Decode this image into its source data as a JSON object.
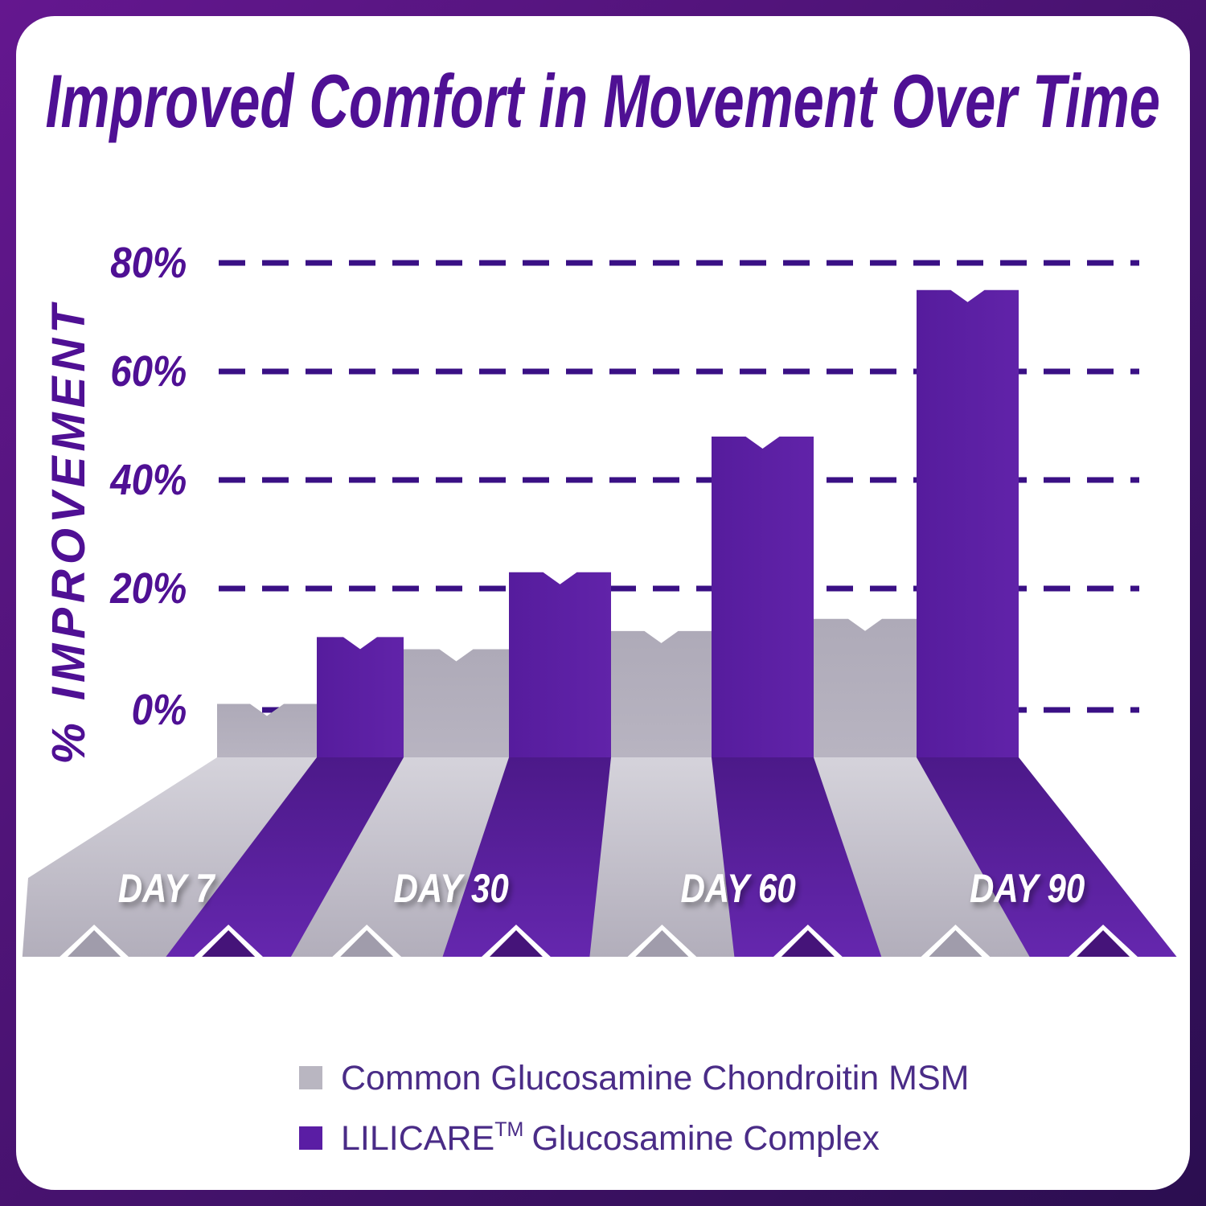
{
  "title": "Improved Comfort in Movement Over Time",
  "y_axis": {
    "label": "% IMPROVEMENT",
    "ticks": [
      "80%",
      "60%",
      "40%",
      "20%",
      "0%"
    ]
  },
  "chart_data": {
    "type": "bar",
    "categories": [
      "DAY 7",
      "DAY 30",
      "DAY 60",
      "DAY 90"
    ],
    "series": [
      {
        "name": "Common Glucosamine Chondroitin MSM",
        "values": [
          1,
          10,
          13,
          15
        ]
      },
      {
        "name": "LILICARE™ Glucosamine Complex",
        "values": [
          12,
          23,
          48,
          75
        ]
      }
    ],
    "title": "Improved Comfort in Movement Over Time",
    "xlabel": "",
    "ylabel": "% IMPROVEMENT",
    "ylim": [
      0,
      80
    ],
    "yticks": [
      0,
      20,
      40,
      60,
      80
    ],
    "grid": "dashed horizontal",
    "legend_position": "bottom",
    "style": "3d-perspective ribbon bars with notched ends"
  },
  "legend": {
    "row1": "Common Glucosamine Chondroitin MSM",
    "row2_brand": "LILICARE",
    "row2_tm": "TM",
    "row2_rest": "Glucosamine Complex"
  },
  "colors": {
    "title_purple": "#4f1094",
    "gridline": "#3a1085",
    "bar_gray": "#b2aebb",
    "bar_purple_dark": "#561c9d",
    "bar_purple_light": "#6123a9",
    "slope_purple_fold": "#4c1989",
    "slope_purple_front": "#6527ae",
    "floor_fold": "#d5d3db",
    "floor_front": "#b2aebb",
    "notch_gray": "#a09cab",
    "notch_purple": "#451479",
    "day_label": "#ffffff",
    "legend_text": "#4a2c87",
    "legend_gray_swatch": "#b9b6c1",
    "legend_purple_swatch": "#5a1da4",
    "border_gradient_start": "#64178f",
    "border_gradient_end": "#2b0e50",
    "card_background": "#ffffff"
  }
}
